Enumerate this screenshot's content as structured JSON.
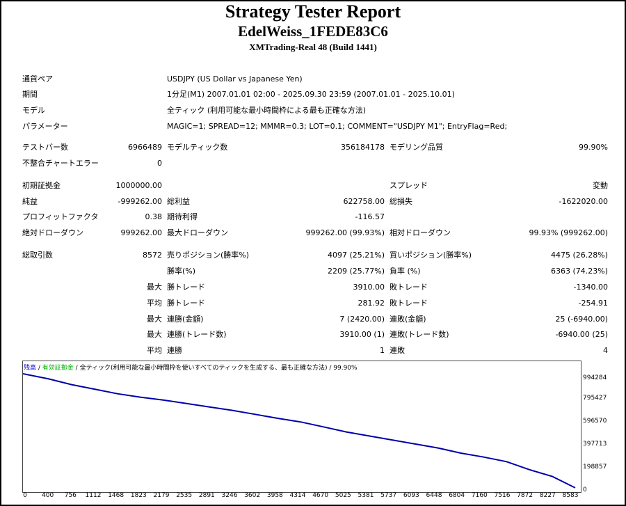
{
  "report": {
    "title": "Strategy Tester Report",
    "ea_name": "EdelWeiss_1FEDE83C6",
    "server": "XMTrading-Real 48 (Build 1441)"
  },
  "settings": {
    "symbol_label": "通貨ペア",
    "symbol_value": "USDJPY (US Dollar vs Japanese Yen)",
    "period_label": "期間",
    "period_value": "1分足(M1) 2007.01.01 02:00 - 2025.09.30 23:59 (2007.01.01 - 2025.10.01)",
    "model_label": "モデル",
    "model_value": "全ティック (利用可能な最小時間枠による最も正確な方法)",
    "params_label": "パラメーター",
    "params_value": "MAGIC=1; SPREAD=12; MMMR=0.3; LOT=0.1; COMMENT=\"USDJPY M1\"; EntryFlag=Red;"
  },
  "stats": {
    "bars_label": "テストバー数",
    "bars_value": "6966489",
    "ticks_label": "モデルティック数",
    "ticks_value": "356184178",
    "quality_label": "モデリング品質",
    "quality_value": "99.90%",
    "mismatch_label": "不整合チャートエラー",
    "mismatch_value": "0",
    "deposit_label": "初期証拠金",
    "deposit_value": "1000000.00",
    "spread_label": "スプレッド",
    "spread_value": "変動",
    "netprofit_label": "純益",
    "netprofit_value": "-999262.00",
    "grossprofit_label": "総利益",
    "grossprofit_value": "622758.00",
    "grossloss_label": "総損失",
    "grossloss_value": "-1622020.00",
    "pf_label": "プロフィットファクタ",
    "pf_value": "0.38",
    "expected_label": "期待利得",
    "expected_value": "-116.57",
    "absdd_label": "絶対ドローダウン",
    "absdd_value": "999262.00",
    "maxdd_label": "最大ドローダウン",
    "maxdd_value": "999262.00 (99.93%)",
    "reldd_label": "相対ドローダウン",
    "reldd_value": "99.93% (999262.00)",
    "trades_label": "総取引数",
    "trades_value": "8572",
    "short_label": "売りポジション(勝率%)",
    "short_value": "4097 (25.21%)",
    "long_label": "買いポジション(勝率%)",
    "long_value": "4475 (26.28%)",
    "winrate_label": "勝率(%)",
    "winrate_value": "2209 (25.77%)",
    "lossrate_label": "負率 (%)",
    "lossrate_value": "6363 (74.23%)",
    "max1": "最大",
    "maxwin_label": "勝トレード",
    "maxwin_value": "3910.00",
    "maxloss_label": "敗トレード",
    "maxloss_value": "-1340.00",
    "avg1": "平均",
    "avgwin_label": "勝トレード",
    "avgwin_value": "281.92",
    "avgloss_label": "敗トレード",
    "avgloss_value": "-254.91",
    "max2": "最大",
    "conswin_label": "連勝(金額)",
    "conswin_value": "7 (2420.00)",
    "consloss_label": "連敗(金額)",
    "consloss_value": "25 (-6940.00)",
    "max3": "最大",
    "conswin2_label": "連勝(トレード数)",
    "conswin2_value": "3910.00 (1)",
    "consloss2_label": "連敗(トレード数)",
    "consloss2_value": "-6940.00 (25)",
    "avg2": "平均",
    "avgcw_label": "連勝",
    "avgcw_value": "1",
    "avgcl_label": "連敗",
    "avgcl_value": "4"
  },
  "chart_legend": {
    "balance": "残高",
    "sep1": " / ",
    "margin": "有効証拠金",
    "sep2": " / ",
    "rest": "全ティック(利用可能な最小時間枠を使いすべてのティックを生成する、最も正確な方法) / 99.90%"
  },
  "chart_data": {
    "type": "line",
    "title": "",
    "xlabel": "",
    "ylabel": "",
    "x_ticks": [
      "0",
      "400",
      "756",
      "1112",
      "1468",
      "1823",
      "2179",
      "2535",
      "2891",
      "3246",
      "3602",
      "3958",
      "4314",
      "4670",
      "5025",
      "5381",
      "5737",
      "6093",
      "6448",
      "6804",
      "7160",
      "7516",
      "7872",
      "8227",
      "8583"
    ],
    "y_ticks": [
      "994284",
      "795427",
      "596570",
      "397713",
      "198857",
      "0"
    ],
    "xlim": [
      0,
      8583
    ],
    "ylim": [
      0,
      1000000
    ],
    "series": [
      {
        "color": "#0000aa",
        "x": [
          0,
          400,
          756,
          1112,
          1468,
          1823,
          2179,
          2535,
          2891,
          3246,
          3602,
          3958,
          4314,
          4670,
          5025,
          5381,
          5737,
          6093,
          6448,
          6804,
          7160,
          7516,
          7872,
          8227,
          8583
        ],
        "y": [
          1000000,
          955000,
          905000,
          865000,
          825000,
          795000,
          770000,
          740000,
          710000,
          680000,
          645000,
          610000,
          578000,
          535000,
          490000,
          455000,
          420000,
          385000,
          350000,
          305000,
          270000,
          230000,
          160000,
          100000,
          738
        ]
      }
    ]
  }
}
